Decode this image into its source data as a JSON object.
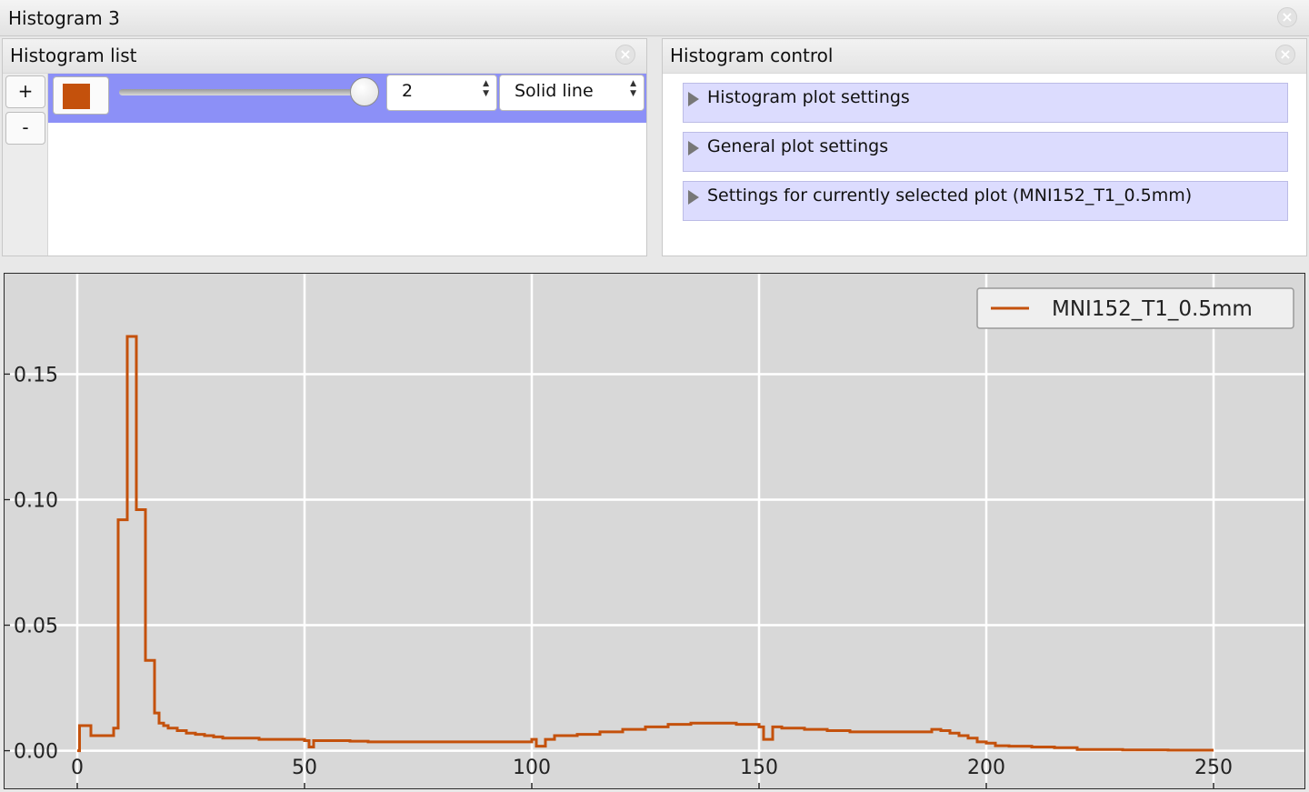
{
  "window": {
    "title": "Histogram 3"
  },
  "histogram_list": {
    "title": "Histogram list",
    "add_label": "+",
    "remove_label": "-",
    "row": {
      "color": "#c4510c",
      "slider_value": 1.0,
      "line_width": "2",
      "line_style": "Solid line"
    }
  },
  "histogram_control": {
    "title": "Histogram control",
    "sections": [
      {
        "label": "Histogram plot settings"
      },
      {
        "label": "General plot settings"
      },
      {
        "label": "Settings for currently selected plot (MNI152_T1_0.5mm)"
      }
    ]
  },
  "chart_data": {
    "type": "line",
    "drawstyle": "steps",
    "title": "",
    "xlabel": "",
    "ylabel": "",
    "xlim": [
      -16,
      270
    ],
    "ylim": [
      -0.015,
      0.19
    ],
    "xticks": [
      0,
      50,
      100,
      150,
      200,
      250
    ],
    "xtick_labels": [
      "0",
      "50",
      "100",
      "150",
      "200",
      "250"
    ],
    "yticks": [
      0.0,
      0.05,
      0.1,
      0.15
    ],
    "ytick_labels": [
      "0.00",
      "0.05",
      "0.10",
      "0.15"
    ],
    "grid": true,
    "legend": "top-right",
    "background": "#d8d8d8",
    "series": [
      {
        "name": "MNI152_T1_0.5mm",
        "color": "#c4510c",
        "x": [
          0,
          0.5,
          3,
          6,
          8,
          9,
          10,
          11,
          12,
          13,
          14,
          15,
          16,
          17,
          18,
          19,
          20,
          22,
          24,
          26,
          28,
          30,
          32,
          35,
          40,
          45,
          50,
          51,
          52,
          55,
          60,
          64,
          70,
          80,
          90,
          100,
          101,
          102,
          103,
          105,
          110,
          115,
          120,
          125,
          130,
          135,
          140,
          145,
          150,
          151,
          152,
          153,
          155,
          160,
          165,
          170,
          175,
          180,
          185,
          188,
          190,
          192,
          194,
          196,
          198,
          200,
          202,
          205,
          210,
          215,
          220,
          230,
          240,
          250
        ],
        "y": [
          0.0,
          0.01,
          0.006,
          0.006,
          0.009,
          0.092,
          0.092,
          0.165,
          0.165,
          0.096,
          0.096,
          0.036,
          0.036,
          0.015,
          0.011,
          0.01,
          0.009,
          0.008,
          0.007,
          0.0065,
          0.006,
          0.0055,
          0.005,
          0.005,
          0.0045,
          0.0045,
          0.004,
          0.0015,
          0.004,
          0.004,
          0.0038,
          0.0035,
          0.0035,
          0.0035,
          0.0035,
          0.0045,
          0.0018,
          0.0018,
          0.0045,
          0.006,
          0.0065,
          0.0075,
          0.0085,
          0.0095,
          0.0105,
          0.011,
          0.011,
          0.0105,
          0.0095,
          0.0045,
          0.0045,
          0.0095,
          0.009,
          0.0085,
          0.008,
          0.0075,
          0.0075,
          0.0075,
          0.0075,
          0.0085,
          0.008,
          0.007,
          0.006,
          0.005,
          0.0035,
          0.003,
          0.002,
          0.0018,
          0.0015,
          0.0012,
          0.0005,
          0.0003,
          0.0002,
          0.0002
        ]
      }
    ]
  }
}
